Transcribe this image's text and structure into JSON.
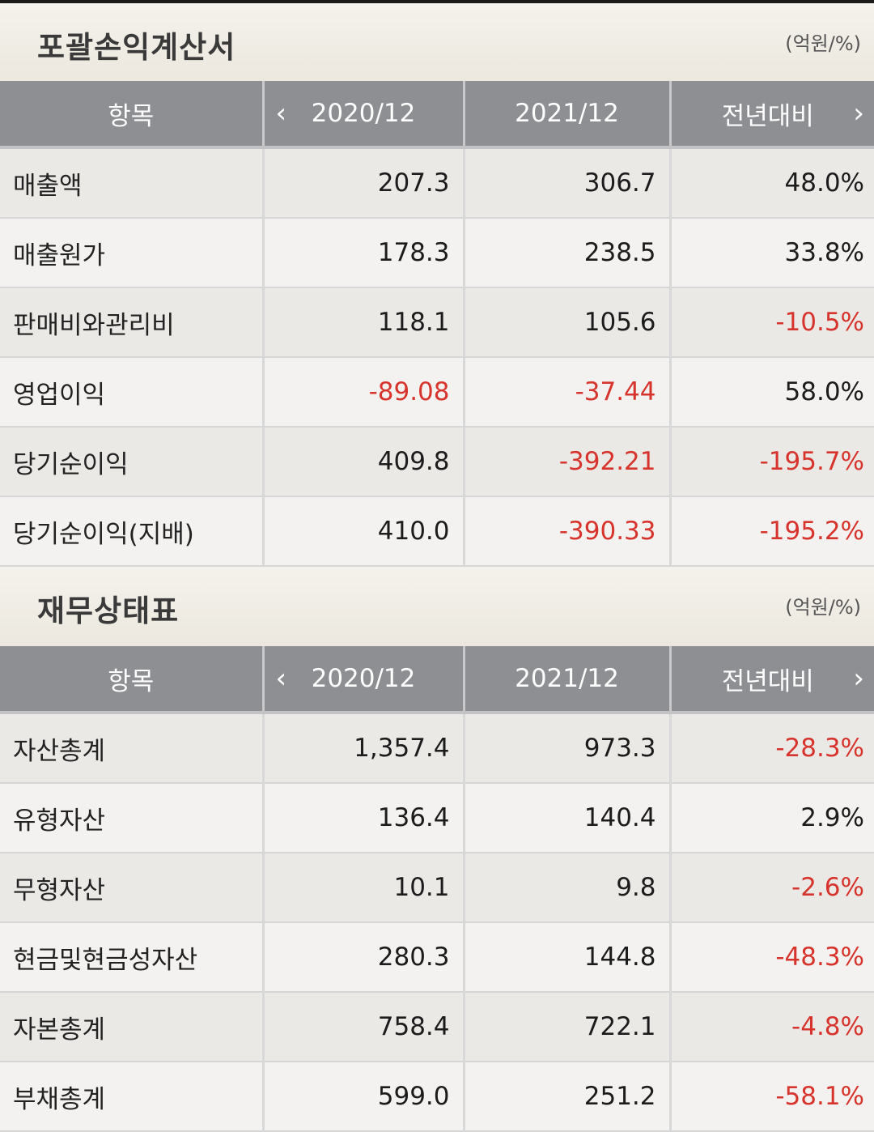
{
  "income": {
    "title": "포괄손익계산서",
    "unit": "(억원/%)",
    "headers": {
      "item": "항목",
      "year1": "2020/12",
      "year2": "2021/12",
      "yoy": "전년대비",
      "prev_icon": "chevron-left-icon",
      "next_icon": "chevron-right-icon"
    },
    "rows": [
      {
        "label": "매출액",
        "y1": "207.3",
        "y2": "306.7",
        "yoy": "48.0%"
      },
      {
        "label": "매출원가",
        "y1": "178.3",
        "y2": "238.5",
        "yoy": "33.8%"
      },
      {
        "label": "판매비와관리비",
        "y1": "118.1",
        "y2": "105.6",
        "yoy": "-10.5%"
      },
      {
        "label": "영업이익",
        "y1": "-89.08",
        "y2": "-37.44",
        "yoy": "58.0%"
      },
      {
        "label": "당기순이익",
        "y1": "409.8",
        "y2": "-392.21",
        "yoy": "-195.7%"
      },
      {
        "label": "당기순이익(지배)",
        "y1": "410.0",
        "y2": "-390.33",
        "yoy": "-195.2%"
      }
    ]
  },
  "balance": {
    "title": "재무상태표",
    "unit": "(억원/%)",
    "headers": {
      "item": "항목",
      "year1": "2020/12",
      "year2": "2021/12",
      "yoy": "전년대비",
      "prev_icon": "chevron-left-icon",
      "next_icon": "chevron-right-icon"
    },
    "rows": [
      {
        "label": "자산총계",
        "y1": "1,357.4",
        "y2": "973.3",
        "yoy": "-28.3%"
      },
      {
        "label": "유형자산",
        "y1": "136.4",
        "y2": "140.4",
        "yoy": "2.9%"
      },
      {
        "label": "무형자산",
        "y1": "10.1",
        "y2": "9.8",
        "yoy": "-2.6%"
      },
      {
        "label": "현금및현금성자산",
        "y1": "280.3",
        "y2": "144.8",
        "yoy": "-48.3%"
      },
      {
        "label": "자본총계",
        "y1": "758.4",
        "y2": "722.1",
        "yoy": "-4.8%"
      },
      {
        "label": "부채총계",
        "y1": "599.0",
        "y2": "251.2",
        "yoy": "-58.1%"
      }
    ]
  },
  "colors": {
    "negative": "#d6342c",
    "header_bg": "#8e8f93",
    "row_odd": "#ebe9e6",
    "row_even": "#f3f2f0"
  }
}
